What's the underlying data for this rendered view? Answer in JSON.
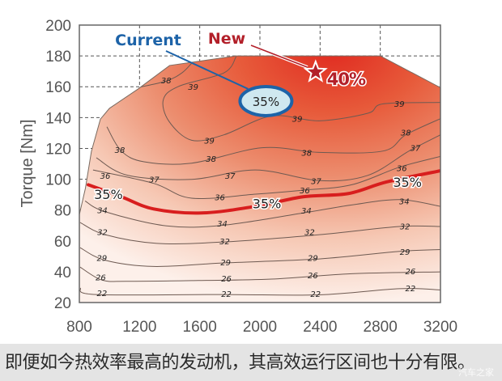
{
  "chart_data": {
    "type": "contour",
    "title": "",
    "xlabel": "",
    "ylabel": "Torque [Nm]",
    "xlim": [
      800,
      3200
    ],
    "ylim": [
      20,
      200
    ],
    "xticks": [
      800,
      1200,
      1600,
      2000,
      2400,
      2800,
      3200
    ],
    "yticks": [
      20,
      40,
      60,
      80,
      100,
      120,
      140,
      160,
      180,
      200
    ],
    "grid": "dashed, upper region",
    "colors": {
      "hot": "#e02a20",
      "cold": "#fdf0ea",
      "contour": "#6e5a52",
      "highlight": "#d81e1e",
      "current": "#1d63a8",
      "new": "#b3202a"
    },
    "envelope": [
      [
        800,
        20
      ],
      [
        800,
        77
      ],
      [
        840,
        94
      ],
      [
        880,
        118
      ],
      [
        940,
        139
      ],
      [
        1000,
        146
      ],
      [
        1190,
        158.5
      ],
      [
        1400,
        173.8
      ],
      [
        1840,
        180
      ],
      [
        2800,
        180
      ],
      [
        3200,
        159.4
      ],
      [
        3200,
        20
      ]
    ],
    "contours": [
      {
        "level": "22",
        "points": [
          [
            805,
            29.4
          ],
          [
            913,
            25.2
          ],
          [
            1761,
            25.2
          ],
          [
            2395,
            25
          ],
          [
            2927,
            29
          ],
          [
            3200,
            28.2
          ]
        ],
        "labels": [
          [
            950,
            26.4
          ],
          [
            1777,
            25.9
          ],
          [
            2370,
            25.7
          ],
          [
            3000,
            29.4
          ]
        ]
      },
      {
        "level": "26",
        "points": [
          [
            805,
            43
          ],
          [
            950,
            34.6
          ],
          [
            1122,
            33.8
          ],
          [
            1589,
            34.3
          ],
          [
            2078,
            35.2
          ],
          [
            2610,
            38.7
          ],
          [
            3200,
            39.9
          ]
        ],
        "labels": [
          [
            942,
            36.4
          ],
          [
            1777,
            35.7
          ],
          [
            2352,
            37.8
          ],
          [
            3000,
            40.4
          ]
        ]
      },
      {
        "level": "29",
        "points": [
          [
            805,
            55.6
          ],
          [
            972,
            47.4
          ],
          [
            1294,
            43.4
          ],
          [
            1761,
            45.7
          ],
          [
            2395,
            48.3
          ],
          [
            2927,
            53.2
          ],
          [
            3200,
            54.4
          ]
        ],
        "labels": [
          [
            950,
            49.2
          ],
          [
            1772,
            46.2
          ],
          [
            2352,
            49
          ],
          [
            2964,
            53
          ]
        ]
      },
      {
        "level": "32",
        "points": [
          [
            805,
            71.9
          ],
          [
            972,
            64
          ],
          [
            1315,
            58.4
          ],
          [
            1761,
            59.3
          ],
          [
            2395,
            64
          ],
          [
            2927,
            69.3
          ],
          [
            3200,
            69.3
          ]
        ],
        "labels": [
          [
            953,
            65.8
          ],
          [
            1766,
            60
          ],
          [
            2330,
            65.8
          ],
          [
            2964,
            69.7
          ]
        ]
      },
      {
        "level": "34",
        "points": [
          [
            838,
            85.9
          ],
          [
            972,
            78.9
          ],
          [
            1380,
            69.7
          ],
          [
            1761,
            70.2
          ],
          [
            2287,
            78.1
          ],
          [
            2610,
            83.3
          ],
          [
            2927,
            86.8
          ],
          [
            3200,
            82.4
          ]
        ],
        "labels": [
          [
            953,
            80.1
          ],
          [
            1750,
            71.4
          ],
          [
            2309,
            79.8
          ],
          [
            2959,
            85.9
          ]
        ]
      },
      {
        "level": "36",
        "points": [
          [
            891,
            106
          ],
          [
            1294,
            97.3
          ],
          [
            1546,
            87.7
          ],
          [
            1971,
            90.3
          ],
          [
            2287,
            92.9
          ],
          [
            2610,
            96.4
          ],
          [
            2927,
            107.8
          ],
          [
            3200,
            114.8
          ]
        ],
        "labels": [
          [
            972,
            102.5
          ],
          [
            1734,
            88.6
          ],
          [
            2298,
            92.9
          ],
          [
            2943,
            107.5
          ]
        ]
      },
      {
        "level": "37",
        "points": [
          [
            913,
            113.9
          ],
          [
            1122,
            102.5
          ],
          [
            1546,
            99.9
          ],
          [
            1971,
            106
          ],
          [
            2395,
            99.1
          ],
          [
            2717,
            102.5
          ],
          [
            2991,
            118.3
          ],
          [
            3200,
            128.8
          ]
        ],
        "labels": [
          [
            1297,
            99.9
          ],
          [
            1802,
            102.5
          ],
          [
            2374,
            99.1
          ],
          [
            3033,
            120.4
          ]
        ]
      },
      {
        "level": "38",
        "points": [
          [
            983,
            134
          ],
          [
            1079,
            118.3
          ],
          [
            1230,
            111.3
          ],
          [
            1546,
            110.4
          ],
          [
            2014,
            120.4
          ],
          [
            2395,
            117.4
          ],
          [
            2819,
            118.3
          ],
          [
            2969,
            128.8
          ],
          [
            3200,
            139.3
          ]
        ],
        "labels": [
          [
            1069,
            119.2
          ],
          [
            1675,
            113.4
          ],
          [
            2311,
            117.4
          ],
          [
            2969,
            130.5
          ]
        ]
      },
      {
        "level": "38",
        "points": [
          [
            1187,
            159.4
          ],
          [
            1380,
            163.8
          ],
          [
            1482,
            169
          ],
          [
            1546,
            175.2
          ]
        ],
        "labels": [
          [
            1377,
            164.3
          ]
        ]
      },
      {
        "level": "39",
        "points": [
          [
            1842,
            179.5
          ],
          [
            1761,
            169
          ],
          [
            1461,
            160.3
          ],
          [
            1358,
            151.6
          ],
          [
            1396,
            137.5
          ],
          [
            1546,
            125.3
          ],
          [
            1761,
            128.8
          ],
          [
            2078,
            141
          ],
          [
            2395,
            137.9
          ],
          [
            2717,
            142.8
          ],
          [
            2819,
            148.9
          ],
          [
            3200,
            149.8
          ]
        ],
        "labels": [
          [
            1557,
            160
          ],
          [
            1664,
            125.3
          ],
          [
            2248,
            139.3
          ],
          [
            2927,
            149.2
          ]
        ]
      }
    ],
    "highlight_contour": {
      "level": "35%",
      "points": [
        [
          859,
          96.4
        ],
        [
          1079,
          88.6
        ],
        [
          1294,
          80.7
        ],
        [
          1611,
          78.1
        ],
        [
          1971,
          82.4
        ],
        [
          2287,
          88.6
        ],
        [
          2588,
          90.7
        ],
        [
          2841,
          98.2
        ],
        [
          3200,
          105.5
        ]
      ],
      "labels": [
        [
          993,
          90.3
        ],
        [
          2046,
          84.2
        ],
        [
          2980,
          98.2
        ]
      ]
    },
    "annotations": {
      "current": {
        "label": "Current",
        "value": "35%",
        "at": [
          2040,
          150.7
        ]
      },
      "new": {
        "label": "New",
        "value": "40%",
        "at": [
          2370,
          169.5
        ]
      }
    }
  },
  "caption": "即便如今热效率最高的发动机，其高效运行区间也十分有限。",
  "watermark": "汽车之家"
}
